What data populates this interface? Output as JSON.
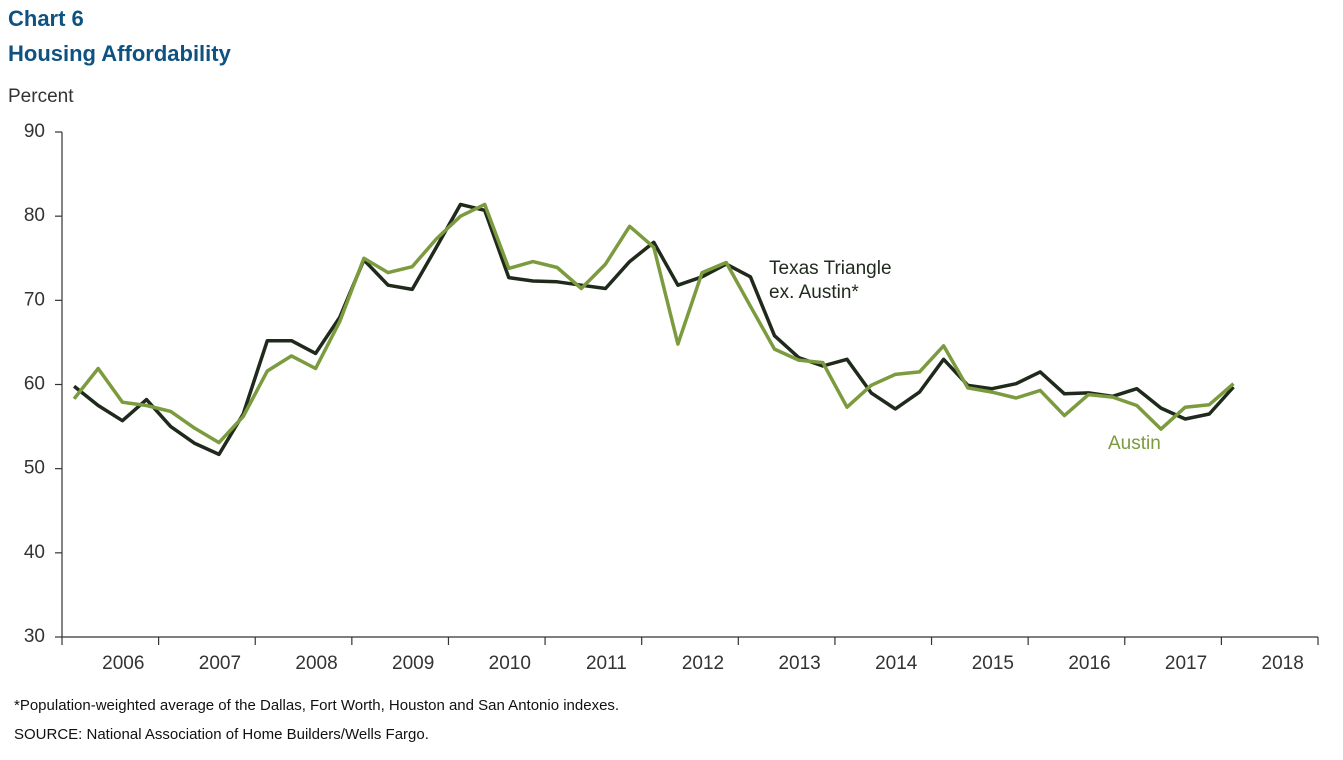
{
  "chart_data": {
    "type": "line",
    "title": "Chart 6",
    "subtitle": "Housing Affordability",
    "y_label": "Percent",
    "categories": [
      "2006",
      null,
      null,
      null,
      "2007",
      null,
      null,
      null,
      "2008",
      null,
      null,
      null,
      "2009",
      null,
      null,
      null,
      "2010",
      null,
      null,
      null,
      "2011",
      null,
      null,
      null,
      "2012",
      null,
      null,
      null,
      "2013",
      null,
      null,
      null,
      "2014",
      null,
      null,
      null,
      "2015",
      null,
      null,
      null,
      "2016",
      null,
      null,
      null,
      "2017",
      null,
      null,
      null,
      "2018",
      null,
      null,
      null
    ],
    "series": [
      {
        "name_lines": [
          "Texas Triangle",
          "ex. Austin*"
        ],
        "color": "#1f2a1c",
        "values": [
          59.8,
          57.5,
          55.7,
          58.2,
          55.0,
          53.0,
          51.7,
          56.5,
          65.2,
          65.2,
          63.7,
          68.0,
          74.8,
          71.8,
          71.3,
          76.3,
          81.4,
          80.7,
          72.7,
          72.3,
          72.2,
          71.8,
          71.4,
          74.6,
          76.9,
          71.8,
          72.8,
          74.3,
          72.8,
          65.8,
          63.2,
          62.2,
          63.0,
          59.0,
          57.1,
          59.1,
          63.0,
          59.9,
          59.5,
          60.1,
          61.5,
          58.9,
          59.0,
          58.6,
          59.5,
          57.2,
          55.9,
          56.5,
          59.7,
          null,
          null,
          null
        ]
      },
      {
        "name": "Austin",
        "color": "#7b9b3e",
        "values": [
          58.3,
          61.9,
          57.9,
          57.5,
          56.8,
          54.8,
          53.1,
          56.2,
          61.6,
          63.4,
          61.9,
          67.5,
          75.0,
          73.3,
          74.0,
          77.3,
          80.0,
          81.4,
          73.8,
          74.6,
          73.9,
          71.4,
          74.3,
          78.8,
          76.3,
          64.8,
          73.3,
          74.5,
          69.3,
          64.2,
          62.9,
          62.6,
          57.3,
          59.9,
          61.2,
          61.5,
          64.6,
          59.6,
          59.1,
          58.4,
          59.3,
          56.3,
          58.8,
          58.5,
          57.5,
          54.7,
          57.3,
          57.6,
          60.1,
          null,
          null,
          null
        ]
      }
    ],
    "ylim": [
      30,
      90
    ],
    "yticks": [
      30,
      40,
      50,
      60,
      70,
      80,
      90
    ],
    "grid": false,
    "footnote": "*Population-weighted average of the Dallas, Fort Worth, Houston and San Antonio indexes.",
    "source": "SOURCE: National Association of Home Builders/Wells Fargo."
  }
}
